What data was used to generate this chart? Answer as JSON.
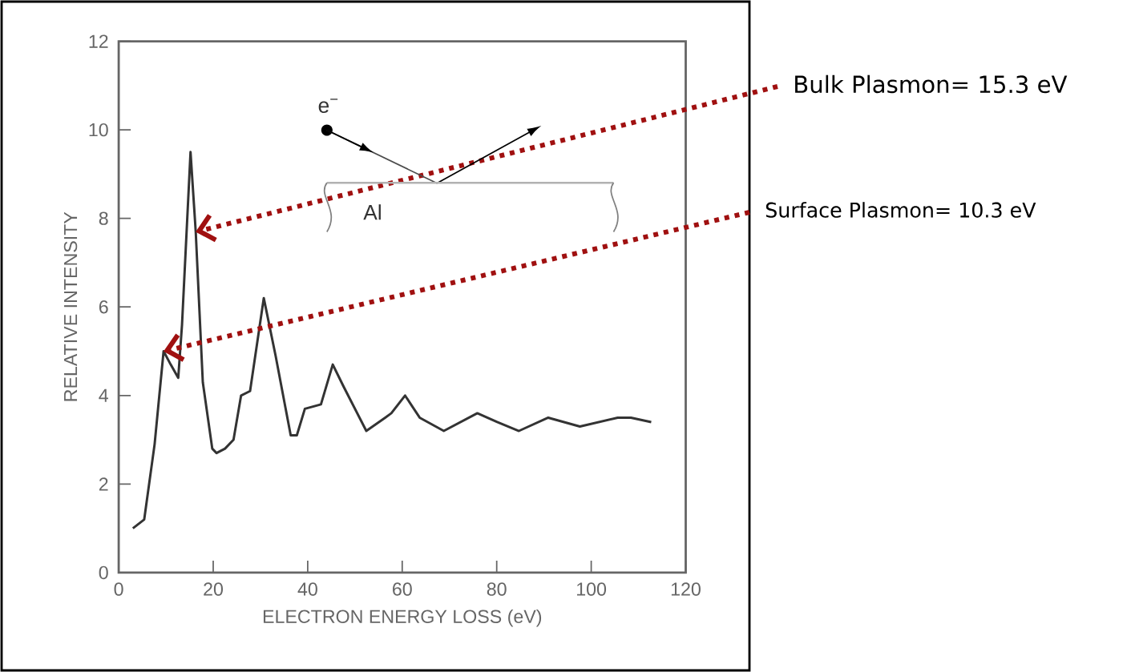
{
  "chart_data": {
    "type": "line",
    "xlabel": "ELECTRON ENERGY LOSS (eV)",
    "ylabel": "RELATIVE INTENSITY",
    "x": [
      3.0,
      5.4,
      7.6,
      9.5,
      11,
      12.6,
      13.4,
      15.2,
      16.3,
      17.8,
      19.8,
      20.7,
      22.5,
      24.3,
      25.9,
      27.8,
      30.7,
      33.2,
      36.4,
      37.7,
      39.4,
      42.8,
      45.3,
      47.6,
      52.4,
      56.4,
      57.7,
      60.6,
      63.7,
      68.8,
      75.9,
      80.1,
      84.7,
      90.9,
      97.6,
      105.6,
      108.4,
      112.7
    ],
    "series": [
      {
        "color": "#333333",
        "values": [
          1.0,
          1.2,
          2.9,
          5.0,
          4.7,
          4.4,
          5.6,
          9.5,
          7.7,
          4.3,
          2.8,
          2.7,
          2.8,
          3.0,
          4.0,
          4.1,
          6.2,
          4.9,
          3.1,
          3.1,
          3.7,
          3.8,
          4.7,
          4.2,
          3.2,
          3.5,
          3.6,
          4.0,
          3.5,
          3.2,
          3.6,
          3.4,
          3.2,
          3.5,
          3.3,
          3.5,
          3.5,
          3.4
        ]
      }
    ],
    "xlim": [
      0,
      120
    ],
    "ylim": [
      0,
      12
    ],
    "xticks": [
      0,
      20,
      40,
      60,
      80,
      100,
      120
    ],
    "yticks": [
      0,
      2,
      4,
      6,
      8,
      10,
      12
    ],
    "line_style": "solid",
    "annotations": [
      {
        "text": "Bulk Plasmon= 15.3 eV",
        "x": 16.3,
        "y": 7.7
      },
      {
        "text": "Surface Plasmon= 10.3 eV",
        "x": 9.5,
        "y": 5.0
      },
      "e$^{−}$",
      "Al"
    ]
  }
}
